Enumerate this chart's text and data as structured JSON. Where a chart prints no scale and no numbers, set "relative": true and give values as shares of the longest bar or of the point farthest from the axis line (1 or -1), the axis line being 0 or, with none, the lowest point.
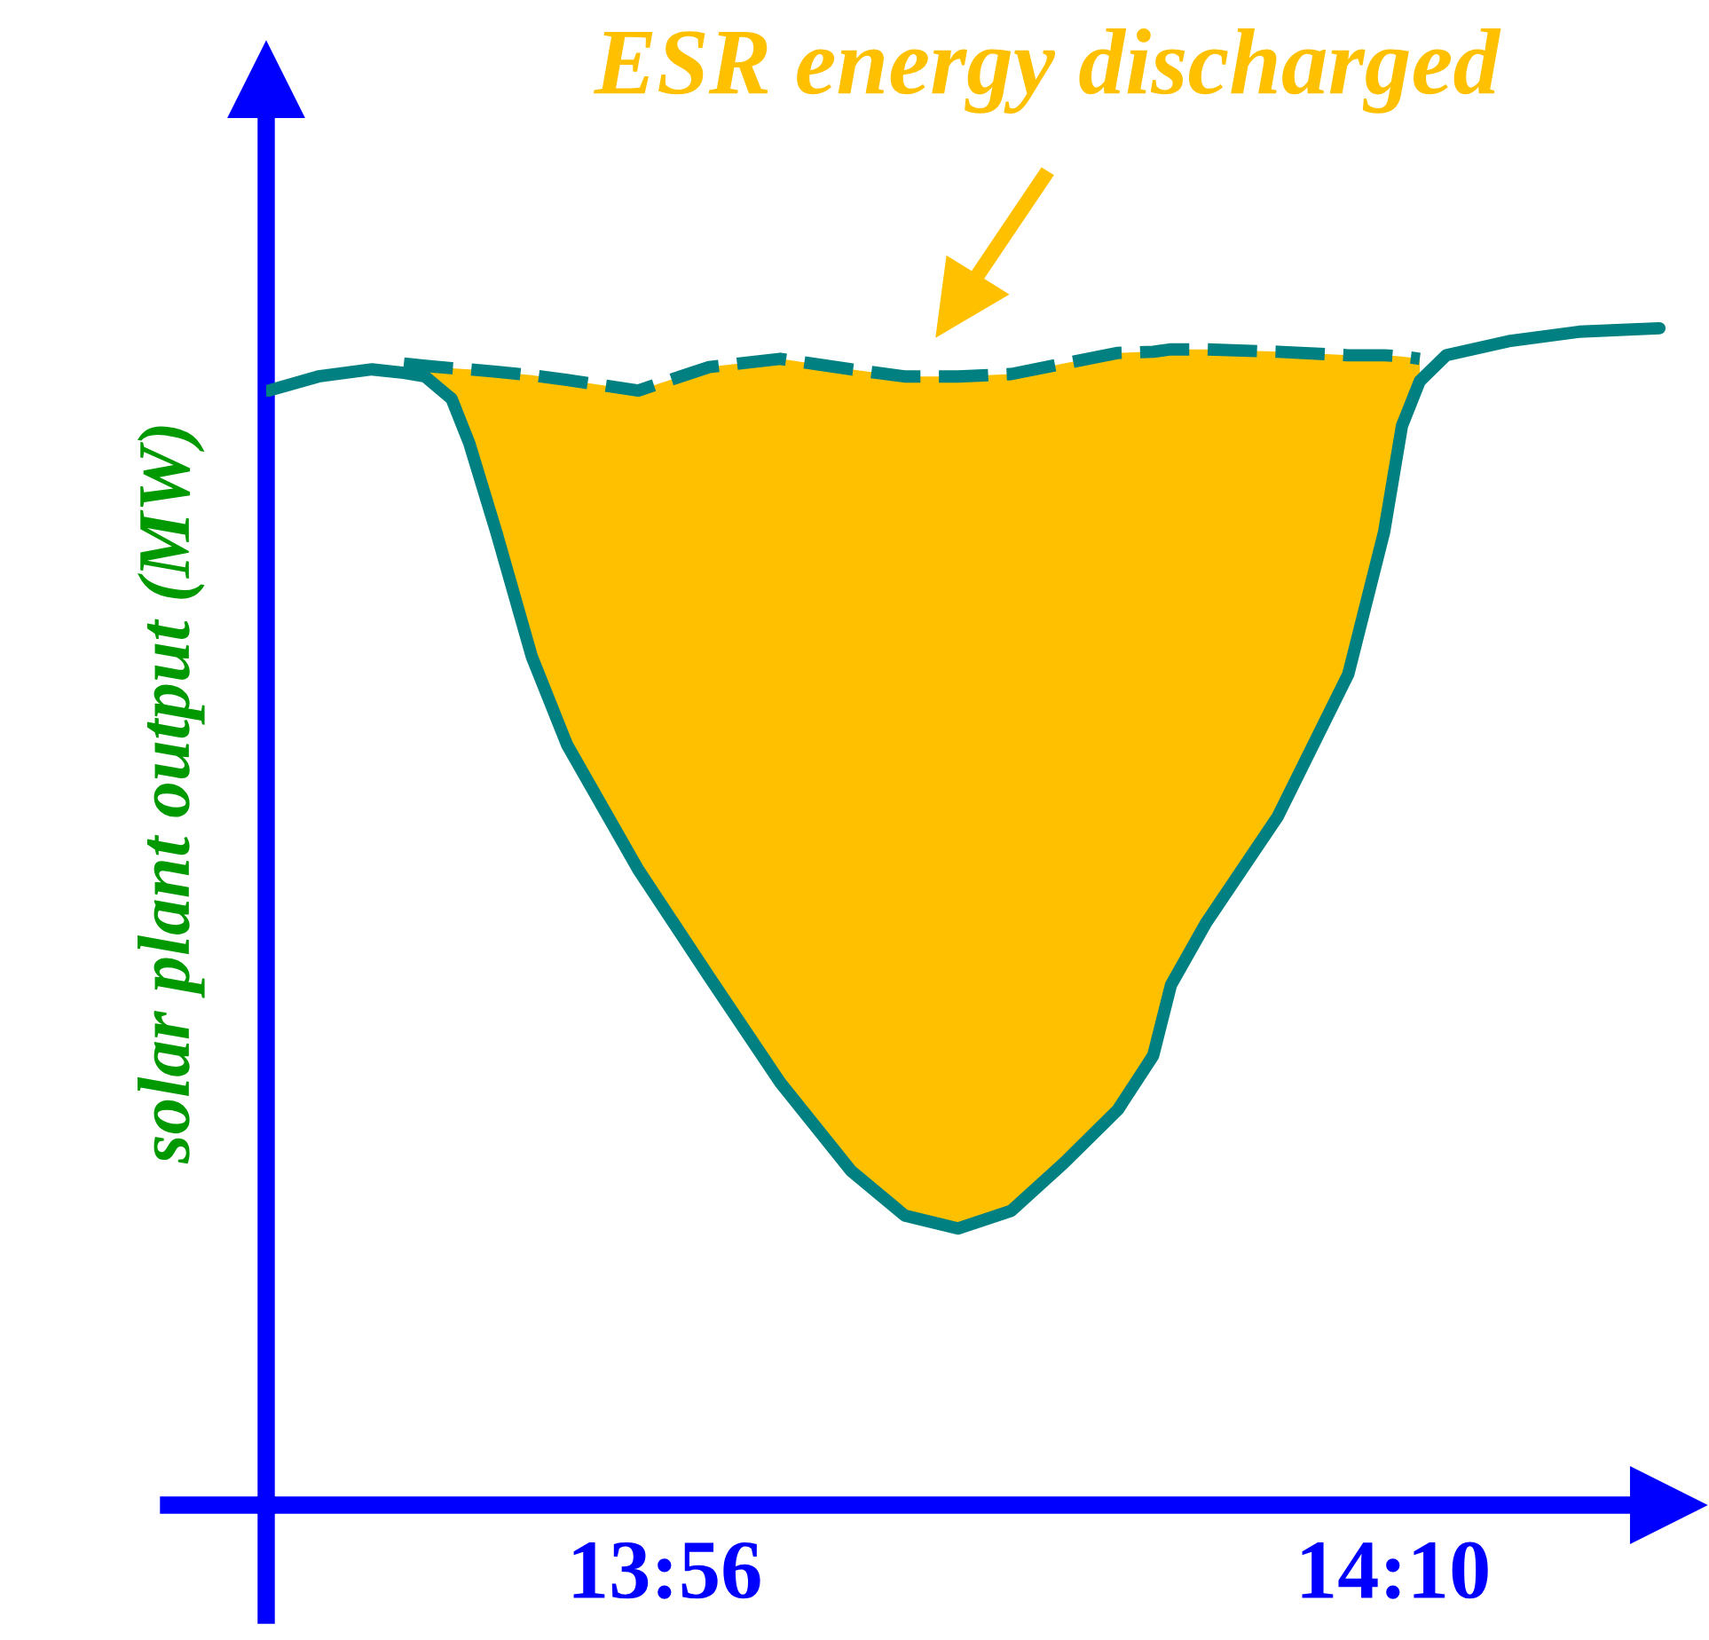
{
  "chart_data": {
    "type": "line",
    "relative": true,
    "ylabel": "solar plant output (MW)",
    "tick_labels": "x",
    "xlim": [
      13.8056,
      14.2548
    ],
    "xticks": [
      {
        "value": 13.9333,
        "label": "13:56"
      },
      {
        "value": 14.1667,
        "label": "14:10"
      }
    ],
    "annotations": [
      "ESR energy discharged"
    ],
    "series": [
      {
        "color": "#008080",
        "line_style": "solid",
        "x": [
          13.8064,
          13.8223,
          13.8395,
          13.8497,
          13.8565,
          13.865,
          13.8707,
          13.8793,
          13.8907,
          13.902,
          13.9248,
          13.9475,
          13.9703,
          13.993,
          14.0102,
          14.0272,
          14.0443,
          14.0613,
          14.0785,
          14.0898,
          14.0955,
          14.1068,
          14.1297,
          14.1523,
          14.1638,
          14.1695,
          14.1752,
          14.1837,
          14.2037,
          14.2263,
          14.252
        ],
        "values": [
          0.947,
          0.959,
          0.965,
          0.962,
          0.959,
          0.94,
          0.902,
          0.827,
          0.721,
          0.646,
          0.54,
          0.449,
          0.359,
          0.284,
          0.246,
          0.235,
          0.25,
          0.291,
          0.336,
          0.382,
          0.442,
          0.495,
          0.585,
          0.706,
          0.827,
          0.917,
          0.955,
          0.977,
          0.989,
          0.997,
          1.0
        ]
      },
      {
        "color": "#008080",
        "line_style": "dashed",
        "x": [
          13.8497,
          13.8565,
          13.865,
          13.8707,
          13.8793,
          13.8907,
          13.902,
          13.9248,
          13.9475,
          13.9703,
          13.993,
          14.0102,
          14.0272,
          14.0443,
          14.0613,
          14.0785,
          14.0898,
          14.0955,
          14.1068,
          14.1297,
          14.1523,
          14.1638,
          14.1695,
          14.1752
        ],
        "values": [
          0.97,
          0.968,
          0.966,
          0.965,
          0.963,
          0.96,
          0.956,
          0.947,
          0.967,
          0.974,
          0.965,
          0.959,
          0.959,
          0.961,
          0.97,
          0.979,
          0.98,
          0.982,
          0.982,
          0.98,
          0.977,
          0.977,
          0.976,
          0.974
        ],
        "lower": [
          0.962,
          0.959,
          0.94,
          0.902,
          0.827,
          0.721,
          0.646,
          0.54,
          0.449,
          0.359,
          0.284,
          0.246,
          0.235,
          0.25,
          0.291,
          0.336,
          0.382,
          0.442,
          0.495,
          0.585,
          0.706,
          0.827,
          0.917,
          0.955
        ],
        "upper": [
          0.97,
          0.968,
          0.966,
          0.965,
          0.963,
          0.96,
          0.956,
          0.947,
          0.967,
          0.974,
          0.965,
          0.959,
          0.959,
          0.961,
          0.97,
          0.979,
          0.98,
          0.982,
          0.982,
          0.98,
          0.977,
          0.977,
          0.976,
          0.974
        ]
      }
    ]
  }
}
